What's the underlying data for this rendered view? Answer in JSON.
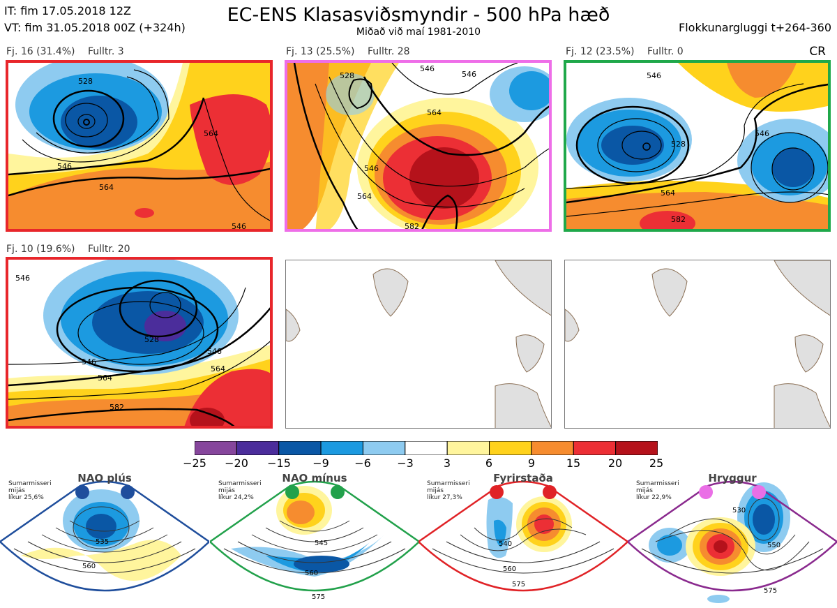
{
  "header": {
    "it_line": "IT: fim 17.05.2018 12Z",
    "vt_line": "VT: fim 31.05.2018 00Z  (+324h)",
    "title": "EC-ENS Klasasviðsmyndir - 500 hPa hæð",
    "subtitle": "Miðað við maí 1981-2010",
    "window": "Flokkunargluggi t+264-360",
    "corner": "CR"
  },
  "panels": [
    {
      "cluster": "Fj. 16 (31.4%)",
      "control": "Fulltr. 3",
      "frame_color": "#e8262b",
      "contours": [
        "528",
        "546",
        "564",
        "564",
        "546"
      ]
    },
    {
      "cluster": "Fj. 13 (25.5%)",
      "control": "Fulltr. 28",
      "frame_color": "#ee6ee8",
      "contours": [
        "528",
        "546",
        "546",
        "564",
        "546",
        "564",
        "582"
      ]
    },
    {
      "cluster": "Fj. 12 (23.5%)",
      "control": "Fulltr. 0",
      "frame_color": "#1fa84a",
      "contours": [
        "546",
        "546",
        "528",
        "564",
        "582"
      ]
    },
    {
      "cluster": "Fj. 10 (19.6%)",
      "control": "Fulltr. 20",
      "frame_color": "#e8262b",
      "contours": [
        "546",
        "528",
        "546",
        "546",
        "564",
        "564",
        "582"
      ]
    }
  ],
  "colorbar": {
    "colors": [
      "#86469c",
      "#4b2d9b",
      "#0a57a5",
      "#1c9ae0",
      "#8ecbf0",
      "#ffffff",
      "#fff59d",
      "#ffd21c",
      "#f68c2f",
      "#ec2f35",
      "#b5121b"
    ],
    "ticks": [
      "−25",
      "−20",
      "−15",
      "−9",
      "−6",
      "−3",
      "3",
      "6",
      "9",
      "15",
      "20",
      "25"
    ]
  },
  "regimes": [
    {
      "name": "NAO plús",
      "color": "#1f4e9c",
      "dot_color": "#1f4e9c",
      "l1": "Sumarmisseri",
      "l2": "mijás",
      "l3": "líkur 25,6%",
      "contours": [
        "535",
        "560"
      ]
    },
    {
      "name": "NAO mínus",
      "color": "#22a14b",
      "dot_color": "#22a14b",
      "l1": "Sumarmisseri",
      "l2": "mijás",
      "l3": "líkur 24,2%",
      "contours": [
        "545",
        "560",
        "575"
      ]
    },
    {
      "name": "Fyrirstaða",
      "color": "#e02226",
      "dot_color": "#e02226",
      "l1": "Sumarmisseri",
      "l2": "mijás",
      "l3": "líkur 27,3%",
      "contours": [
        "540",
        "560",
        "575"
      ]
    },
    {
      "name": "Hryggur",
      "color": "#8a2a8e",
      "dot_color": "#ea6fe6",
      "l1": "Sumarmisseri",
      "l2": "mijás",
      "l3": "líkur 22,9%",
      "contours": [
        "530",
        "550",
        "575"
      ]
    }
  ]
}
